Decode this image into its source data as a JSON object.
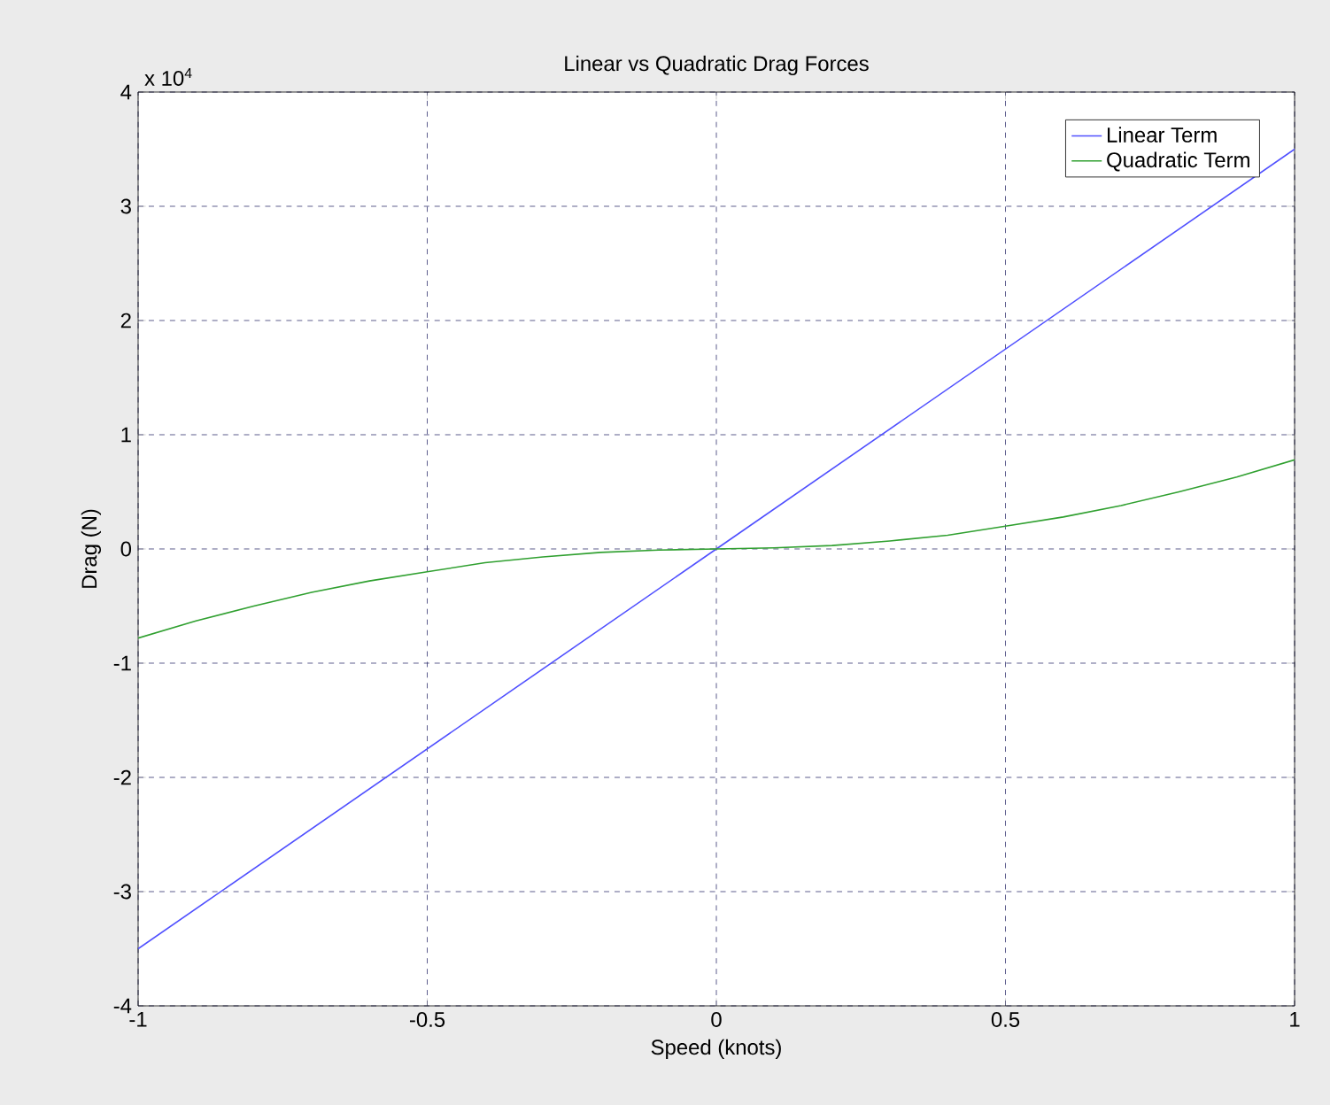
{
  "chart_data": {
    "type": "line",
    "title": "Linear vs Quadratic Drag Forces",
    "xlabel": "Speed (knots)",
    "ylabel": "Drag (N)",
    "annotations": [
      "x 10$^{4}$"
    ],
    "series": [
      {
        "name": "Linear Term",
        "color": "#5050ff",
        "x": [
          -1,
          0,
          1
        ],
        "values": [
          -3.5,
          0,
          3.5
        ]
      },
      {
        "name": "Quadratic Term",
        "color": "#30a030",
        "x": [
          -1,
          -0.9,
          -0.8,
          -0.7,
          -0.6,
          -0.5,
          -0.4,
          -0.3,
          -0.2,
          -0.1,
          0,
          0.1,
          0.2,
          0.3,
          0.4,
          0.5,
          0.6,
          0.7,
          0.8,
          0.9,
          1
        ],
        "values": [
          -0.78,
          -0.63,
          -0.5,
          -0.38,
          -0.28,
          -0.2,
          -0.12,
          -0.07,
          -0.03,
          -0.01,
          0,
          0.01,
          0.03,
          0.07,
          0.12,
          0.2,
          0.28,
          0.38,
          0.5,
          0.63,
          0.78
        ]
      }
    ],
    "xlim": [
      -1,
      1
    ],
    "ylim": [
      -4,
      4
    ],
    "xticks": [
      -1,
      -0.5,
      0,
      0.5,
      1
    ],
    "yticks": [
      -4,
      -3,
      -2,
      -1,
      0,
      1,
      2,
      3,
      4
    ],
    "grid": true,
    "legend": "top right",
    "marker": "none",
    "line_style": "solid"
  }
}
